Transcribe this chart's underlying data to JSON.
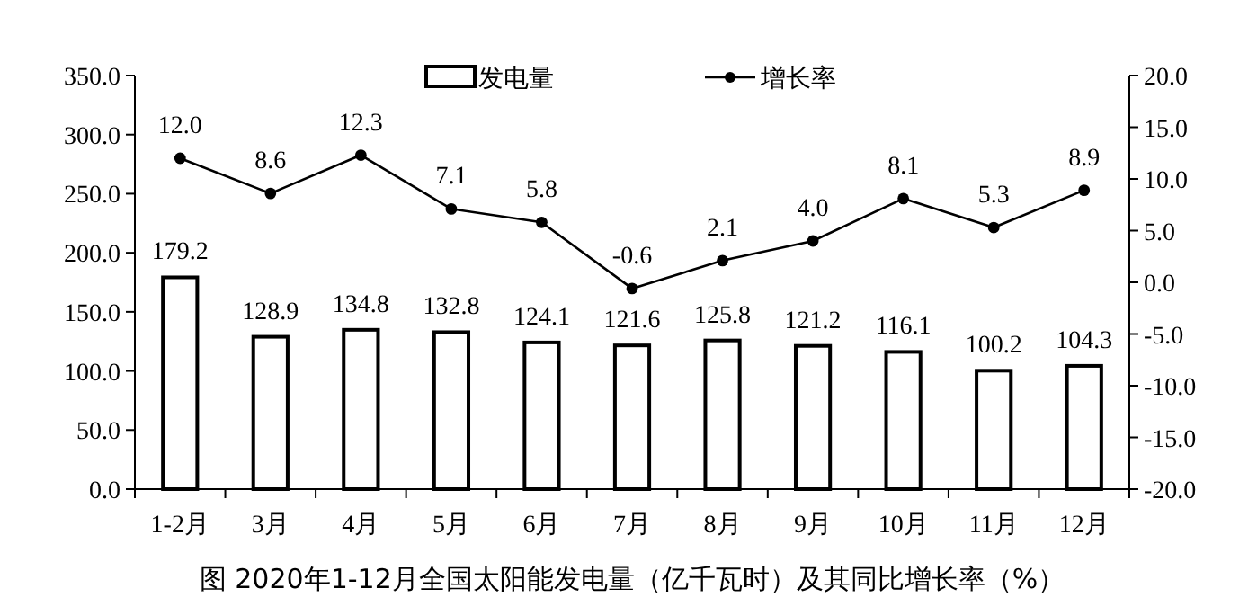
{
  "chart_data": {
    "type": "bar",
    "title": "图 2020年1-12月全国太阳能发电量（亿千瓦时）及其同比增长率（%）",
    "categories": [
      "1-2月",
      "3月",
      "4月",
      "5月",
      "6月",
      "7月",
      "8月",
      "9月",
      "10月",
      "11月",
      "12月"
    ],
    "series": [
      {
        "name": "发电量",
        "color": "#ffffff",
        "values": [
          179.2,
          128.9,
          134.8,
          132.8,
          124.1,
          121.6,
          125.8,
          121.2,
          116.1,
          100.2,
          104.3
        ],
        "value_labels": [
          "179.2",
          "128.9",
          "134.8",
          "132.8",
          "124.1",
          "121.6",
          "125.8",
          "121.2",
          "116.1",
          "100.2",
          "104.3"
        ]
      },
      {
        "name": "增长率",
        "type": "line",
        "axis": "y2",
        "color": "#000000",
        "marker": "circle",
        "values": [
          12.0,
          8.6,
          12.3,
          7.1,
          5.8,
          -0.6,
          2.1,
          4.0,
          8.1,
          5.3,
          8.9
        ],
        "value_labels": [
          "12.0",
          "8.6",
          "12.3",
          "7.1",
          "5.8",
          "-0.6",
          "2.1",
          "4.0",
          "8.1",
          "5.3",
          "8.9"
        ]
      }
    ],
    "ylim": [
      0,
      350
    ],
    "yticks": [
      {
        "value": 0,
        "label": "0.0"
      },
      {
        "value": 50,
        "label": "50.0"
      },
      {
        "value": 100,
        "label": "100.0"
      },
      {
        "value": 150,
        "label": "150.0"
      },
      {
        "value": 200,
        "label": "200.0"
      },
      {
        "value": 250,
        "label": "250.0"
      },
      {
        "value": 300,
        "label": "300.0"
      },
      {
        "value": 350,
        "label": "350.0"
      }
    ],
    "y2lim": [
      -20,
      20
    ],
    "y2ticks": [
      {
        "value": -20,
        "label": "-20.0"
      },
      {
        "value": -15,
        "label": "-15.0"
      },
      {
        "value": -10,
        "label": "-10.0"
      },
      {
        "value": -5,
        "label": "-5.0"
      },
      {
        "value": 0,
        "label": "0.0"
      },
      {
        "value": 5,
        "label": "5.0"
      },
      {
        "value": 10,
        "label": "10.0"
      },
      {
        "value": 15,
        "label": "15.0"
      },
      {
        "value": 20,
        "label": "20.0"
      }
    ],
    "legend": "top",
    "grid": false
  }
}
